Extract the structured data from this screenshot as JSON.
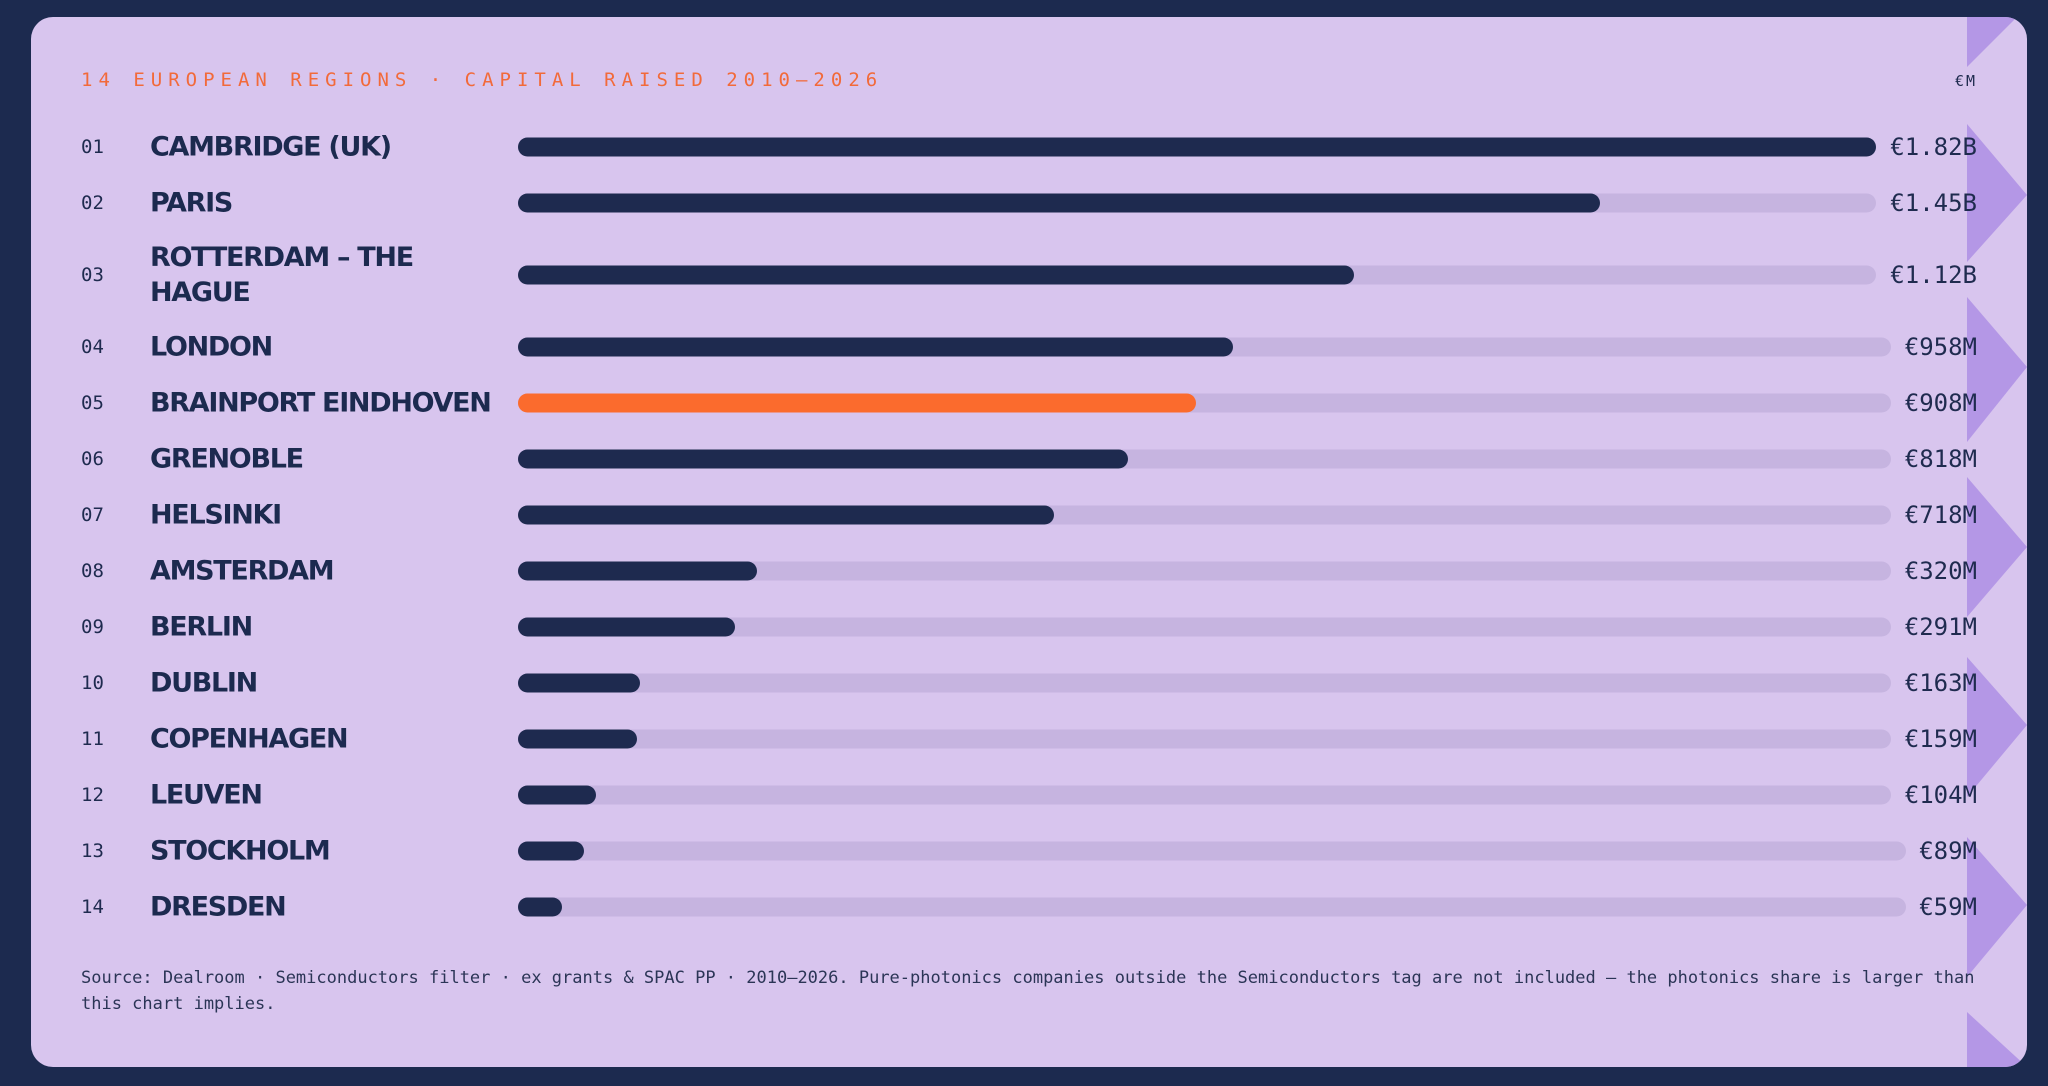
{
  "header": {
    "eyebrow": "14 EUROPEAN REGIONS · CAPITAL RAISED 2010–2026",
    "unit": "€M"
  },
  "colors": {
    "bar": "#1e2a4f",
    "highlight": "#fb6b2d",
    "track": "#c6b4e0",
    "card": "#d8c5ee",
    "page": "#1c2a4f"
  },
  "chart_data": {
    "type": "bar",
    "orientation": "horizontal",
    "unit": "€M",
    "highlight_index": 4,
    "ranks": [
      "01",
      "02",
      "03",
      "04",
      "05",
      "06",
      "07",
      "08",
      "09",
      "10",
      "11",
      "12",
      "13",
      "14"
    ],
    "categories": [
      "Cambridge (UK)",
      "Paris",
      "Rotterdam – The Hague",
      "London",
      "Brainport Eindhoven",
      "Grenoble",
      "Helsinki",
      "Amsterdam",
      "Berlin",
      "Dublin",
      "Copenhagen",
      "Leuven",
      "Stockholm",
      "Dresden"
    ],
    "values": [
      1820,
      1450,
      1120,
      958,
      908,
      818,
      718,
      320,
      291,
      163,
      159,
      104,
      89,
      59
    ],
    "value_labels": [
      "€1.82B",
      "€1.45B",
      "€1.12B",
      "€958M",
      "€908M",
      "€818M",
      "€718M",
      "€320M",
      "€291M",
      "€163M",
      "€159M",
      "€104M",
      "€89M",
      "€59M"
    ],
    "xlim": [
      0,
      1820
    ]
  },
  "footer": {
    "source": "Source: Dealroom · Semiconductors filter · ex grants & SPAC PP · 2010–2026. Pure-photonics companies outside the Semiconductors tag are not included — the photonics share is larger than this chart implies."
  }
}
